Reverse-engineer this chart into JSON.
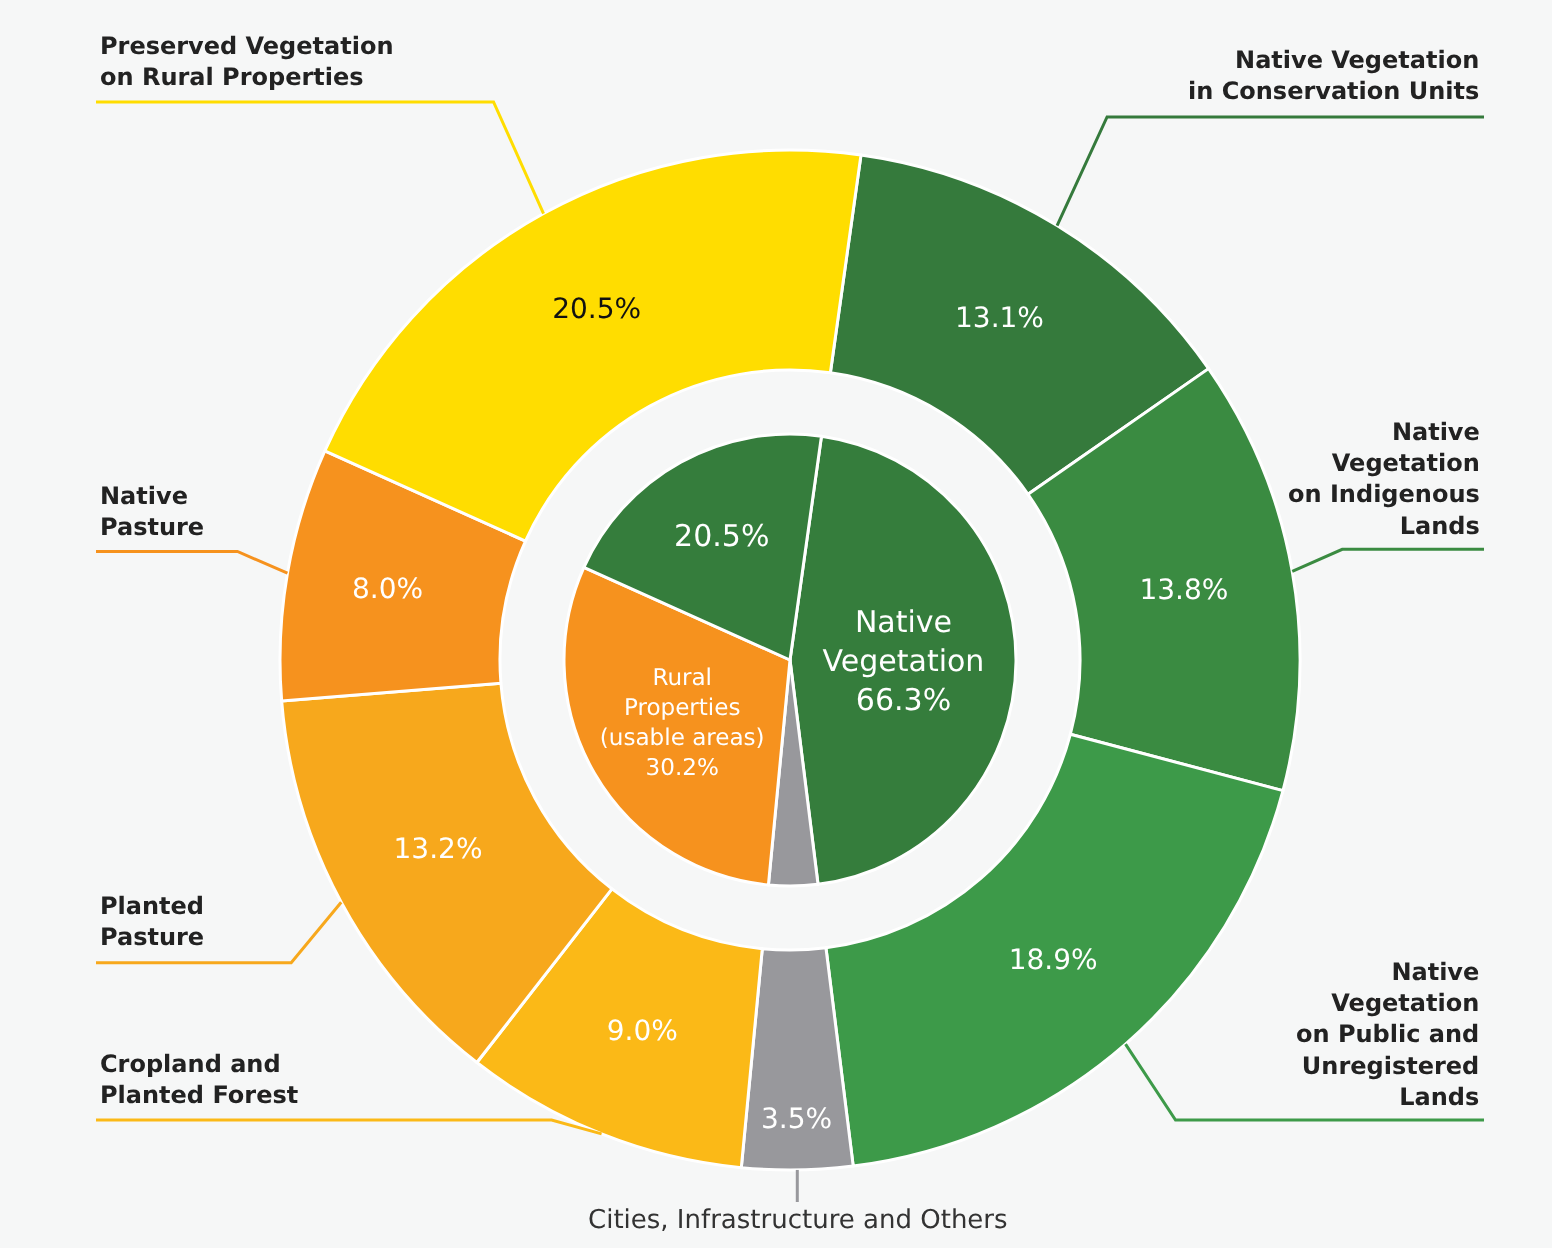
{
  "chart_data": [
    {
      "type": "donut",
      "categories": [
        "Native Vegetation\nin Conservation Units",
        "Native\nVegetation\non Indigenous\nLands",
        "Native\nVegetation\non Public and\nUnregistered\nLands",
        "Cities, Infrastructure and Others",
        "Cropland and\nPlanted Forest",
        "Planted\nPasture",
        "Native\nPasture",
        "Preserved Vegetation\non Rural Properties"
      ],
      "values": [
        13.1,
        13.8,
        18.9,
        3.5,
        9.0,
        13.2,
        8.0,
        20.5
      ],
      "colors": [
        "#357a3c",
        "#3a8b41",
        "#3d9a49",
        "#98989c",
        "#fbb917",
        "#f7a81c",
        "#f6921e",
        "#ffdd00"
      ],
      "value_labels": [
        "13.1%",
        "13.8%",
        "18.9%",
        "3.5%",
        "9.0%",
        "13.2%",
        "8.0%",
        "20.5%"
      ]
    },
    {
      "type": "pie",
      "categories": [
        null,
        null,
        null,
        null
      ],
      "values": [
        45.8,
        3.5,
        30.2,
        20.5
      ],
      "colors": [
        "#357d3c",
        "#98989c",
        "#f6921e",
        "#357d3c"
      ],
      "value_labels": [
        "Native\nVegetation\n66.3%",
        null,
        "Rural\nProperties\n(usable areas)\n30.2%",
        "20.5%"
      ]
    }
  ]
}
